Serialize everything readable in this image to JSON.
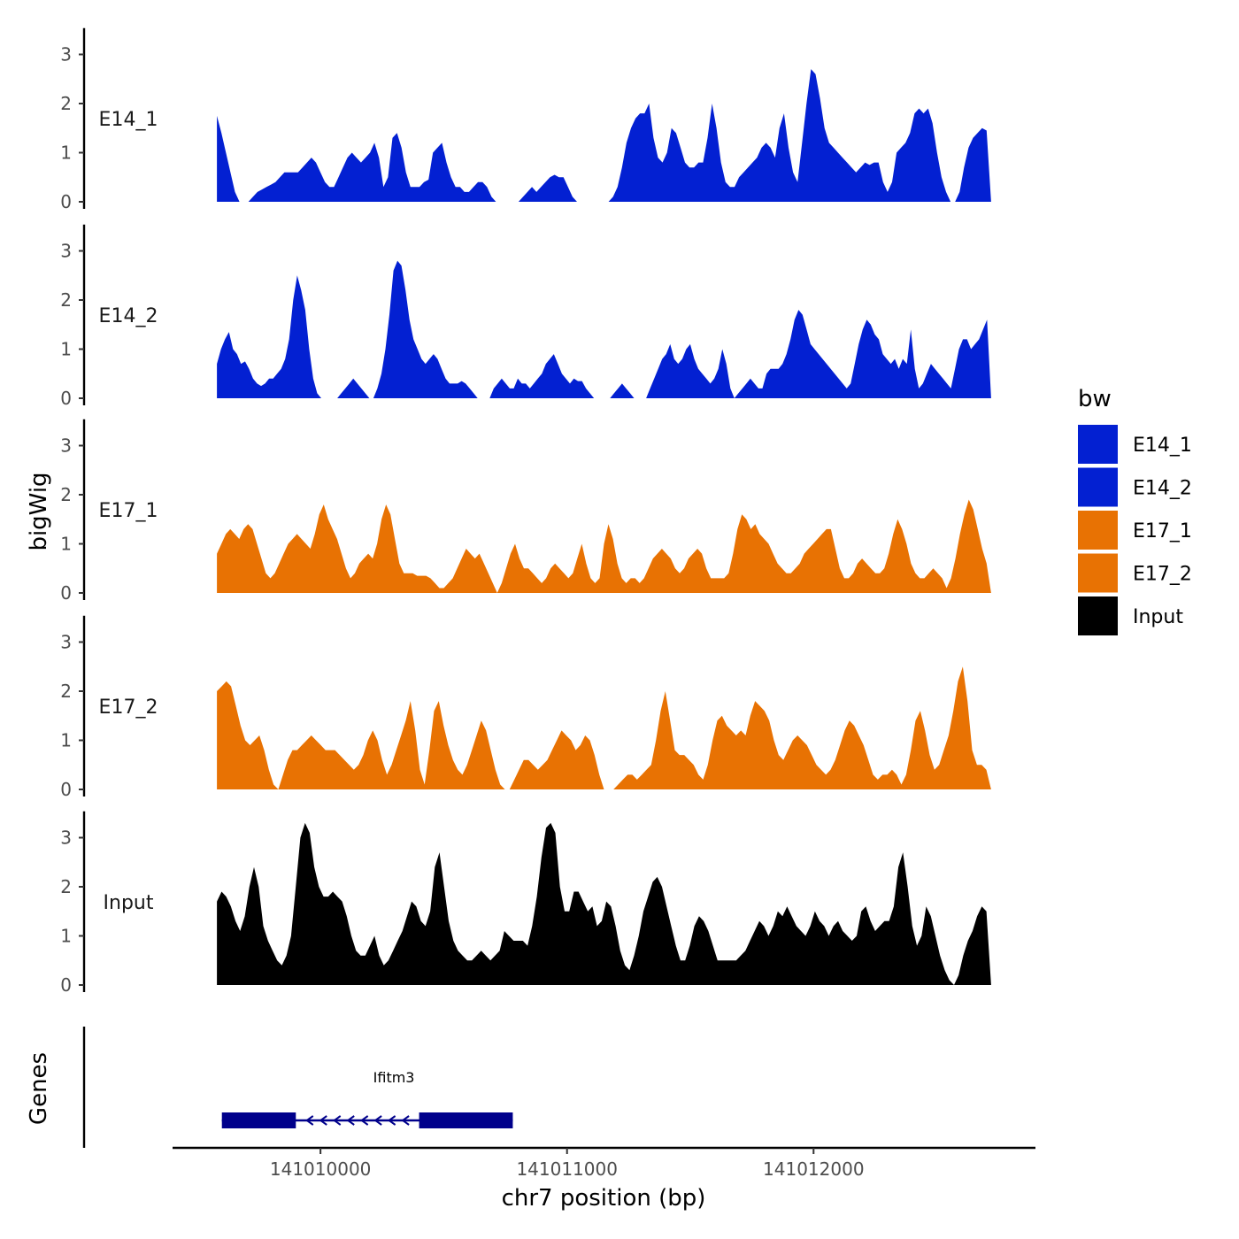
{
  "chart_data": {
    "type": "area",
    "ylabel": "bigWig",
    "xlabel": "chr7 position (bp)",
    "xlim": [
      141009400,
      141012900
    ],
    "x_start": 141009580,
    "x_end": 141012720,
    "x_ticks": [
      141010000,
      141011000,
      141012000
    ],
    "x_tick_labels": [
      "141010000",
      "141011000",
      "141012000"
    ],
    "ylim": [
      0,
      3.5
    ],
    "y_ticks": [
      0,
      1,
      2,
      3
    ],
    "y_tick_labels": [
      "0",
      "1",
      "2",
      "3"
    ],
    "legend_title": "bw",
    "tracks": [
      {
        "name": "E14_1",
        "color": "#0320D2",
        "values": [
          1.75,
          1.4,
          1.0,
          0.6,
          0.2,
          0.0,
          0.0,
          0.0,
          0.1,
          0.2,
          0.25,
          0.3,
          0.35,
          0.4,
          0.5,
          0.6,
          0.6,
          0.6,
          0.6,
          0.7,
          0.8,
          0.9,
          0.8,
          0.6,
          0.4,
          0.3,
          0.3,
          0.5,
          0.7,
          0.9,
          1.0,
          0.9,
          0.8,
          0.9,
          1.0,
          1.2,
          0.9,
          0.3,
          0.5,
          1.3,
          1.4,
          1.1,
          0.6,
          0.3,
          0.3,
          0.3,
          0.4,
          0.45,
          1.0,
          1.1,
          1.2,
          0.8,
          0.5,
          0.3,
          0.3,
          0.2,
          0.2,
          0.3,
          0.4,
          0.4,
          0.3,
          0.1,
          0.0,
          0.0,
          0.0,
          0.0,
          0.0,
          0.0,
          0.1,
          0.2,
          0.3,
          0.2,
          0.3,
          0.4,
          0.5,
          0.55,
          0.5,
          0.5,
          0.3,
          0.1,
          0.0,
          0.0,
          0.0,
          0.0,
          0.0,
          0.0,
          0.0,
          0.0,
          0.1,
          0.3,
          0.7,
          1.2,
          1.5,
          1.7,
          1.8,
          1.8,
          2.0,
          1.3,
          0.9,
          0.8,
          1.0,
          1.5,
          1.4,
          1.1,
          0.8,
          0.7,
          0.7,
          0.8,
          0.8,
          1.3,
          2.0,
          1.5,
          0.8,
          0.4,
          0.3,
          0.3,
          0.5,
          0.6,
          0.7,
          0.8,
          0.9,
          1.1,
          1.2,
          1.1,
          0.9,
          1.5,
          1.8,
          1.1,
          0.6,
          0.4,
          1.2,
          2.0,
          2.7,
          2.6,
          2.1,
          1.5,
          1.2,
          1.1,
          1.0,
          0.9,
          0.8,
          0.7,
          0.6,
          0.7,
          0.8,
          0.75,
          0.8,
          0.8,
          0.4,
          0.2,
          0.4,
          1.0,
          1.1,
          1.2,
          1.4,
          1.8,
          1.9,
          1.8,
          1.9,
          1.6,
          1.0,
          0.5,
          0.2,
          0.0,
          0.0,
          0.2,
          0.7,
          1.1,
          1.3,
          1.4,
          1.5,
          1.45,
          0.0
        ]
      },
      {
        "name": "E14_2",
        "color": "#0320D2",
        "values": [
          0.7,
          1.0,
          1.2,
          1.35,
          1.0,
          0.9,
          0.7,
          0.75,
          0.6,
          0.4,
          0.3,
          0.25,
          0.3,
          0.4,
          0.4,
          0.5,
          0.6,
          0.8,
          1.2,
          2.0,
          2.5,
          2.2,
          1.8,
          1.0,
          0.4,
          0.1,
          0.0,
          0.0,
          0.0,
          0.0,
          0.0,
          0.1,
          0.2,
          0.3,
          0.4,
          0.3,
          0.2,
          0.1,
          0.0,
          0.0,
          0.2,
          0.5,
          1.0,
          1.7,
          2.6,
          2.8,
          2.7,
          2.2,
          1.6,
          1.2,
          1.0,
          0.8,
          0.7,
          0.8,
          0.9,
          0.8,
          0.6,
          0.4,
          0.3,
          0.3,
          0.3,
          0.35,
          0.3,
          0.2,
          0.1,
          0.0,
          0.0,
          0.0,
          0.0,
          0.2,
          0.3,
          0.4,
          0.3,
          0.2,
          0.2,
          0.4,
          0.3,
          0.3,
          0.2,
          0.3,
          0.4,
          0.5,
          0.7,
          0.8,
          0.9,
          0.7,
          0.5,
          0.4,
          0.3,
          0.4,
          0.35,
          0.35,
          0.2,
          0.1,
          0.0,
          0.0,
          0.0,
          0.0,
          0.0,
          0.1,
          0.2,
          0.3,
          0.2,
          0.1,
          0.0,
          0.0,
          0.0,
          0.0,
          0.2,
          0.4,
          0.6,
          0.8,
          0.9,
          1.1,
          0.8,
          0.7,
          0.8,
          1.0,
          1.1,
          0.8,
          0.6,
          0.5,
          0.4,
          0.3,
          0.4,
          0.6,
          1.0,
          0.7,
          0.2,
          0.0,
          0.1,
          0.2,
          0.3,
          0.4,
          0.3,
          0.2,
          0.2,
          0.5,
          0.6,
          0.6,
          0.6,
          0.7,
          0.9,
          1.2,
          1.6,
          1.8,
          1.7,
          1.4,
          1.1,
          1.0,
          0.9,
          0.8,
          0.7,
          0.6,
          0.5,
          0.4,
          0.3,
          0.2,
          0.3,
          0.7,
          1.1,
          1.4,
          1.6,
          1.5,
          1.3,
          1.2,
          0.9,
          0.8,
          0.7,
          0.8,
          0.6,
          0.8,
          0.7,
          1.4,
          0.6,
          0.2,
          0.3,
          0.5,
          0.7,
          0.6,
          0.5,
          0.4,
          0.3,
          0.2,
          0.6,
          1.0,
          1.2,
          1.2,
          1.0,
          1.1,
          1.2,
          1.4,
          1.6,
          0.0
        ]
      },
      {
        "name": "E17_1",
        "color": "#E87203",
        "values": [
          0.8,
          1.0,
          1.2,
          1.3,
          1.2,
          1.1,
          1.3,
          1.4,
          1.3,
          1.0,
          0.7,
          0.4,
          0.3,
          0.4,
          0.6,
          0.8,
          1.0,
          1.1,
          1.2,
          1.1,
          1.0,
          0.9,
          1.2,
          1.6,
          1.8,
          1.5,
          1.3,
          1.1,
          0.8,
          0.5,
          0.3,
          0.4,
          0.6,
          0.7,
          0.8,
          0.7,
          1.0,
          1.5,
          1.8,
          1.6,
          1.1,
          0.6,
          0.4,
          0.4,
          0.4,
          0.35,
          0.35,
          0.35,
          0.3,
          0.2,
          0.1,
          0.1,
          0.2,
          0.3,
          0.5,
          0.7,
          0.9,
          0.8,
          0.7,
          0.8,
          0.6,
          0.4,
          0.2,
          0.0,
          0.2,
          0.5,
          0.8,
          1.0,
          0.7,
          0.5,
          0.5,
          0.4,
          0.3,
          0.2,
          0.3,
          0.5,
          0.6,
          0.5,
          0.4,
          0.3,
          0.4,
          0.7,
          1.0,
          0.6,
          0.3,
          0.2,
          0.3,
          1.0,
          1.4,
          1.1,
          0.6,
          0.3,
          0.2,
          0.3,
          0.3,
          0.2,
          0.3,
          0.5,
          0.7,
          0.8,
          0.9,
          0.8,
          0.7,
          0.5,
          0.4,
          0.5,
          0.7,
          0.8,
          0.9,
          0.8,
          0.5,
          0.3,
          0.3,
          0.3,
          0.3,
          0.4,
          0.8,
          1.3,
          1.6,
          1.5,
          1.3,
          1.4,
          1.2,
          1.1,
          1.0,
          0.8,
          0.6,
          0.5,
          0.4,
          0.4,
          0.5,
          0.6,
          0.8,
          0.9,
          1.0,
          1.1,
          1.2,
          1.3,
          1.3,
          0.9,
          0.5,
          0.3,
          0.3,
          0.4,
          0.6,
          0.7,
          0.6,
          0.5,
          0.4,
          0.4,
          0.5,
          0.8,
          1.2,
          1.5,
          1.3,
          1.0,
          0.6,
          0.4,
          0.3,
          0.3,
          0.4,
          0.5,
          0.4,
          0.3,
          0.1,
          0.3,
          0.7,
          1.2,
          1.6,
          1.9,
          1.7,
          1.3,
          0.9,
          0.6,
          0.0
        ]
      },
      {
        "name": "E17_2",
        "color": "#E87203",
        "values": [
          2.0,
          2.1,
          2.2,
          2.1,
          1.7,
          1.3,
          1.0,
          0.9,
          1.0,
          1.1,
          0.8,
          0.4,
          0.1,
          0.0,
          0.3,
          0.6,
          0.8,
          0.8,
          0.9,
          1.0,
          1.1,
          1.0,
          0.9,
          0.8,
          0.8,
          0.8,
          0.7,
          0.6,
          0.5,
          0.4,
          0.5,
          0.7,
          1.0,
          1.2,
          1.0,
          0.6,
          0.3,
          0.5,
          0.8,
          1.1,
          1.4,
          1.8,
          1.2,
          0.4,
          0.1,
          0.8,
          1.6,
          1.8,
          1.3,
          0.9,
          0.6,
          0.4,
          0.3,
          0.5,
          0.8,
          1.1,
          1.4,
          1.2,
          0.8,
          0.4,
          0.1,
          0.0,
          0.0,
          0.2,
          0.4,
          0.6,
          0.6,
          0.5,
          0.4,
          0.5,
          0.6,
          0.8,
          1.0,
          1.2,
          1.1,
          1.0,
          0.8,
          0.9,
          1.1,
          1.0,
          0.7,
          0.3,
          0.0,
          0.0,
          0.0,
          0.1,
          0.2,
          0.3,
          0.3,
          0.2,
          0.3,
          0.4,
          0.5,
          1.0,
          1.6,
          2.0,
          1.4,
          0.8,
          0.7,
          0.7,
          0.6,
          0.5,
          0.3,
          0.2,
          0.5,
          1.0,
          1.4,
          1.5,
          1.3,
          1.2,
          1.1,
          1.2,
          1.1,
          1.5,
          1.8,
          1.7,
          1.6,
          1.4,
          1.0,
          0.7,
          0.6,
          0.8,
          1.0,
          1.1,
          1.0,
          0.9,
          0.7,
          0.5,
          0.4,
          0.3,
          0.4,
          0.6,
          0.9,
          1.2,
          1.4,
          1.3,
          1.1,
          0.9,
          0.6,
          0.3,
          0.2,
          0.3,
          0.3,
          0.4,
          0.3,
          0.1,
          0.3,
          0.8,
          1.4,
          1.6,
          1.2,
          0.7,
          0.4,
          0.5,
          0.8,
          1.1,
          1.6,
          2.2,
          2.5,
          1.8,
          0.8,
          0.5,
          0.5,
          0.4,
          0.0
        ]
      },
      {
        "name": "Input",
        "color": "#000000",
        "values": [
          1.7,
          1.9,
          1.8,
          1.6,
          1.3,
          1.1,
          1.4,
          2.0,
          2.4,
          2.0,
          1.2,
          0.9,
          0.7,
          0.5,
          0.4,
          0.6,
          1.0,
          2.0,
          3.0,
          3.3,
          3.1,
          2.4,
          2.0,
          1.8,
          1.8,
          1.9,
          1.8,
          1.7,
          1.4,
          1.0,
          0.7,
          0.6,
          0.6,
          0.8,
          1.0,
          0.6,
          0.4,
          0.5,
          0.7,
          0.9,
          1.1,
          1.4,
          1.7,
          1.6,
          1.3,
          1.2,
          1.5,
          2.4,
          2.7,
          2.0,
          1.3,
          0.9,
          0.7,
          0.6,
          0.5,
          0.5,
          0.6,
          0.7,
          0.6,
          0.5,
          0.6,
          0.7,
          1.1,
          1.0,
          0.9,
          0.9,
          0.9,
          0.8,
          1.2,
          1.8,
          2.6,
          3.2,
          3.3,
          3.1,
          2.0,
          1.5,
          1.5,
          1.9,
          1.9,
          1.7,
          1.5,
          1.6,
          1.2,
          1.3,
          1.7,
          1.6,
          1.2,
          0.7,
          0.4,
          0.3,
          0.6,
          1.0,
          1.5,
          1.8,
          2.1,
          2.2,
          2.0,
          1.6,
          1.2,
          0.8,
          0.5,
          0.5,
          0.8,
          1.2,
          1.4,
          1.3,
          1.1,
          0.8,
          0.5,
          0.5,
          0.5,
          0.5,
          0.5,
          0.6,
          0.7,
          0.9,
          1.1,
          1.3,
          1.2,
          1.0,
          1.2,
          1.5,
          1.4,
          1.6,
          1.4,
          1.2,
          1.1,
          1.0,
          1.2,
          1.5,
          1.3,
          1.2,
          1.0,
          1.2,
          1.3,
          1.1,
          1.0,
          0.9,
          1.0,
          1.5,
          1.6,
          1.3,
          1.1,
          1.2,
          1.3,
          1.3,
          1.6,
          2.4,
          2.7,
          2.0,
          1.2,
          0.8,
          1.0,
          1.6,
          1.4,
          1.0,
          0.6,
          0.3,
          0.1,
          0.0,
          0.2,
          0.6,
          0.9,
          1.1,
          1.4,
          1.6,
          1.5,
          0.0
        ]
      }
    ],
    "genes": [
      {
        "name": "Ifitm3",
        "start": 141009600,
        "end": 141010780,
        "strand": "-",
        "exons": [
          [
            141009600,
            141009900
          ],
          [
            141010400,
            141010780
          ]
        ]
      }
    ]
  },
  "genes_axis_label": "Genes"
}
